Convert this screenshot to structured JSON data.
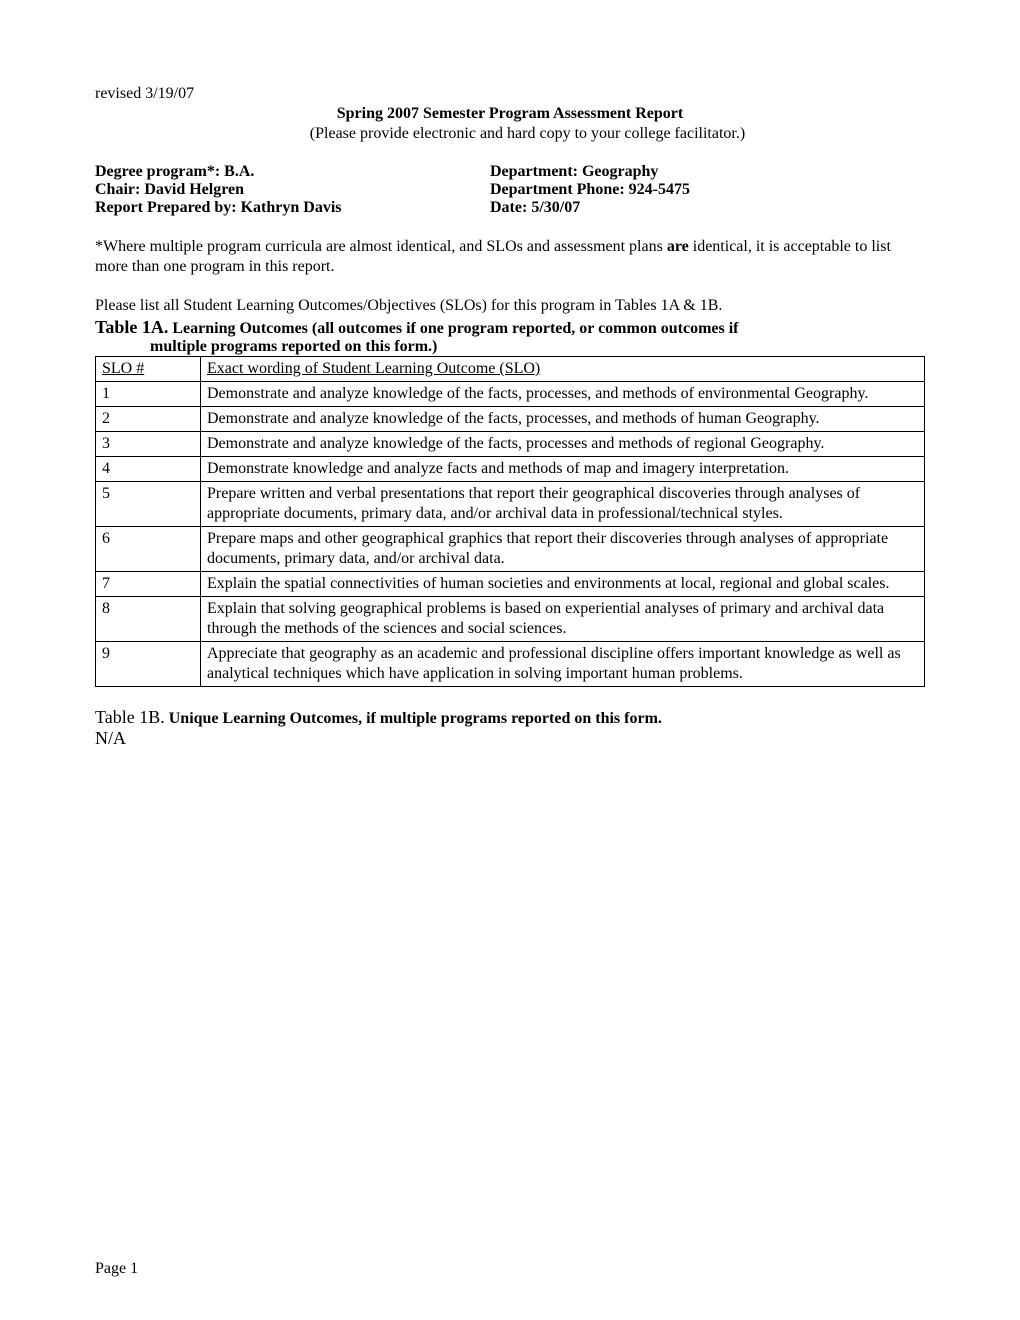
{
  "header": {
    "revised": "revised 3/19/07",
    "title": "Spring 2007 Semester Program Assessment Report",
    "subtitle": "(Please provide electronic and hard copy to your college facilitator.)"
  },
  "info": {
    "degree_label": "Degree program*:  ",
    "degree_value": "B.A.",
    "dept_label": "Department:  ",
    "dept_value": "Geography",
    "chair_label": "Chair:  ",
    "chair_value": "David Helgren",
    "phone_label": "Department Phone:  ",
    "phone_value": "924-5475",
    "prep_label": "Report Prepared by:  ",
    "prep_value": "Kathryn Davis",
    "date_label": "Date:  ",
    "date_value": "5/30/07"
  },
  "note": {
    "before_are": "*Where multiple program curricula are almost identical, and SLOs and assessment plans ",
    "are": "are",
    "after_are": " identical, it is acceptable to list more than one program in this report."
  },
  "instr": "Please list all Student Learning Outcomes/Objectives (SLOs) for this program in Tables 1A & 1B.",
  "table1a": {
    "lead": "Table 1A.",
    "rest": " Learning Outcomes (all outcomes if one program reported, or common outcomes if",
    "cont": "multiple programs reported on this form.)",
    "hdr_num": "SLO #",
    "hdr_text": "Exact wording of Student Learning Outcome (SLO)",
    "rows": [
      {
        "n": "1",
        "t": "Demonstrate and analyze knowledge of the facts, processes, and methods of environmental Geography."
      },
      {
        "n": "2",
        "t": "Demonstrate and analyze knowledge of the facts, processes, and methods of human Geography."
      },
      {
        "n": "3",
        "t": "Demonstrate and analyze knowledge of the facts, processes and methods of regional Geography."
      },
      {
        "n": "4",
        "t": "Demonstrate knowledge and analyze facts and methods of map and imagery interpretation."
      },
      {
        "n": "5",
        "t": "Prepare written and verbal presentations that report their geographical discoveries through analyses of appropriate documents, primary data, and/or archival data in professional/technical styles."
      },
      {
        "n": "6",
        "t": "Prepare maps and other geographical graphics that report their discoveries through analyses of appropriate documents, primary data, and/or archival data."
      },
      {
        "n": "7",
        "t": "Explain the spatial connectivities of human societies and environments at local, regional and global scales."
      },
      {
        "n": "8",
        "t": "Explain that solving geographical problems is based on experiential analyses of primary and archival data through the methods of the sciences and social sciences."
      },
      {
        "n": "9",
        "t": "Appreciate that geography as an academic and professional discipline offers important knowledge as well as analytical techniques which have application in solving important human problems."
      }
    ]
  },
  "table1b": {
    "lead": "Table 1B.",
    "rest": " Unique Learning Outcomes, if multiple programs reported on this form.",
    "na": "N/A"
  },
  "footer": {
    "page": "Page 1"
  }
}
